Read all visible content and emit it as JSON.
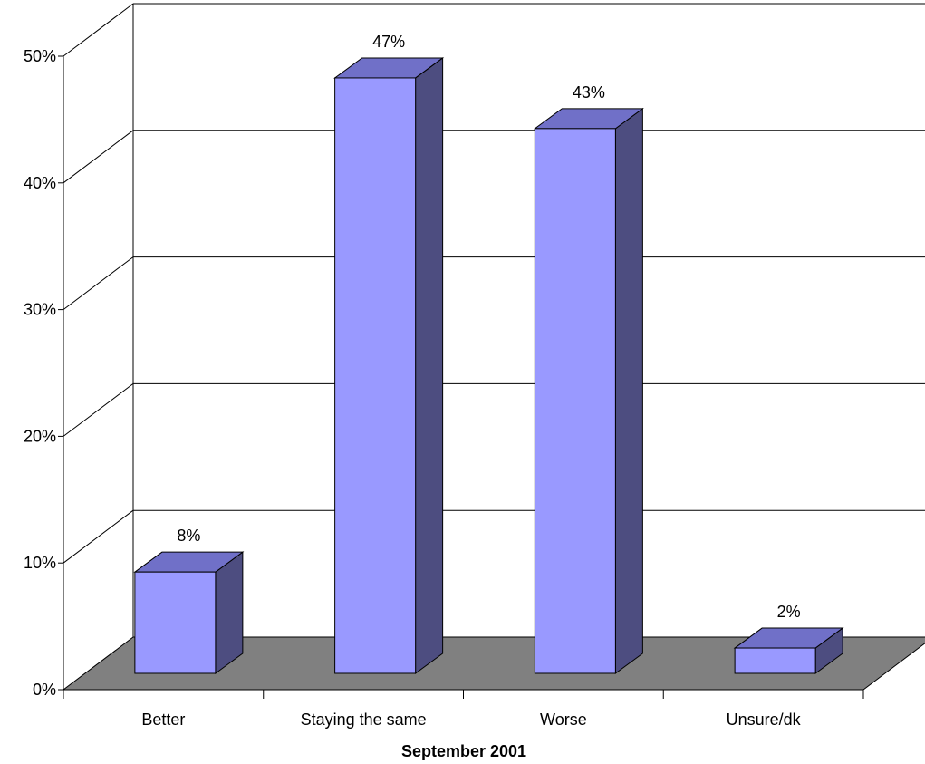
{
  "chart_data": {
    "type": "bar",
    "style": "3d-column",
    "categories": [
      "Better",
      "Staying the same",
      "Worse",
      "Unsure/dk"
    ],
    "values": [
      8,
      47,
      43,
      2
    ],
    "data_labels": [
      "8%",
      "47%",
      "43%",
      "2%"
    ],
    "xlabel": "September 2001",
    "ylabel": "",
    "ylim": [
      0,
      50
    ],
    "yticks": [
      0,
      10,
      20,
      30,
      40,
      50
    ],
    "ytick_labels": [
      "0%",
      "10%",
      "20%",
      "30%",
      "40%",
      "50%"
    ],
    "grid": true,
    "legend": "none",
    "colors": {
      "bar_front": "#9999ff",
      "bar_top": "#7070c8",
      "bar_side": "#4d4d80",
      "floor": "#808080",
      "grid": "#000000"
    }
  }
}
